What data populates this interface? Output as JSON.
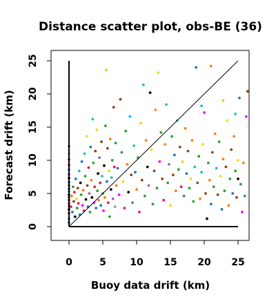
{
  "chart_data": {
    "type": "scatter",
    "title": "Distance scatter plot, obs-BE (36)",
    "xlabel": "Buoy data drift (km)",
    "ylabel": "Forecast drift (km)",
    "xlim": [
      -2.5,
      26.5
    ],
    "ylim": [
      -1.8,
      26
    ],
    "x_ticks": [
      0,
      5,
      10,
      15,
      20,
      25
    ],
    "y_ticks": [
      0,
      5,
      10,
      15,
      20,
      25
    ],
    "grid": false,
    "legend": "none",
    "reference_lines": [
      {
        "kind": "diagonal",
        "x": [
          0,
          25
        ],
        "y": [
          0,
          25
        ]
      },
      {
        "kind": "vertical-axis",
        "x": [
          0,
          0
        ],
        "y": [
          0,
          25
        ]
      },
      {
        "kind": "horizontal-axis",
        "x": [
          0,
          25
        ],
        "y": [
          0,
          0
        ]
      }
    ],
    "palette": [
      "#000000",
      "#e6194b",
      "#2ca02c",
      "#1f77b4",
      "#17becf",
      "#ff00ff",
      "#ffd700",
      "#a0a0a0",
      "#ff7f0e",
      "#8b4513",
      "#7fff00",
      "#9467bd",
      "#00bfff",
      "#ff69b4"
    ],
    "points": [
      [
        0,
        1.2,
        3
      ],
      [
        0,
        2.0,
        1
      ],
      [
        0,
        2.6,
        0
      ],
      [
        0,
        3.1,
        3
      ],
      [
        0,
        3.5,
        5
      ],
      [
        0,
        4.0,
        1
      ],
      [
        0,
        4.4,
        3
      ],
      [
        0,
        4.8,
        0
      ],
      [
        0,
        5.3,
        4
      ],
      [
        0,
        5.7,
        3
      ],
      [
        0,
        6.2,
        1
      ],
      [
        0,
        6.7,
        3
      ],
      [
        0,
        7.3,
        0
      ],
      [
        0,
        7.9,
        5
      ],
      [
        0,
        8.6,
        3
      ],
      [
        0,
        9.3,
        1
      ],
      [
        0,
        10.1,
        9
      ],
      [
        0,
        11.0,
        7
      ],
      [
        0,
        12.1,
        1
      ],
      [
        0,
        0.6,
        3
      ],
      [
        0.3,
        3.0,
        1
      ],
      [
        0.4,
        4.6,
        8
      ],
      [
        0.5,
        2.2,
        3
      ],
      [
        0.6,
        6.0,
        2
      ],
      [
        0.7,
        3.8,
        9
      ],
      [
        0.8,
        5.2,
        1
      ],
      [
        0.9,
        1.5,
        0
      ],
      [
        1.0,
        7.2,
        3
      ],
      [
        1.1,
        4.2,
        6
      ],
      [
        1.2,
        2.8,
        2
      ],
      [
        1.3,
        5.8,
        9
      ],
      [
        1.4,
        3.5,
        1
      ],
      [
        1.5,
        8.4,
        4
      ],
      [
        1.6,
        1.8,
        3
      ],
      [
        1.7,
        6.6,
        0
      ],
      [
        1.8,
        4.8,
        2
      ],
      [
        1.9,
        9.8,
        3
      ],
      [
        2.0,
        3.2,
        5
      ],
      [
        2.1,
        5.5,
        8
      ],
      [
        2.2,
        2.4,
        1
      ],
      [
        2.3,
        11.0,
        4
      ],
      [
        2.4,
        7.6,
        2
      ],
      [
        2.5,
        4.1,
        0
      ],
      [
        2.6,
        13.6,
        6
      ],
      [
        2.7,
        6.2,
        9
      ],
      [
        2.8,
        3.0,
        3
      ],
      [
        2.9,
        8.9,
        1
      ],
      [
        3.0,
        5.0,
        11
      ],
      [
        3.1,
        2.2,
        2
      ],
      [
        3.2,
        12.0,
        3
      ],
      [
        3.3,
        7.0,
        8
      ],
      [
        3.4,
        4.4,
        0
      ],
      [
        3.5,
        16.2,
        4
      ],
      [
        3.6,
        9.6,
        2
      ],
      [
        3.7,
        3.6,
        5
      ],
      [
        3.8,
        6.0,
        1
      ],
      [
        3.9,
        11.4,
        9
      ],
      [
        4.0,
        2.8,
        3
      ],
      [
        4.1,
        14.6,
        6
      ],
      [
        4.2,
        5.4,
        2
      ],
      [
        4.3,
        8.0,
        0
      ],
      [
        4.4,
        4.0,
        8
      ],
      [
        4.5,
        10.4,
        11
      ],
      [
        4.6,
        6.6,
        1
      ],
      [
        4.7,
        3.2,
        3
      ],
      [
        4.8,
        12.8,
        9
      ],
      [
        4.9,
        7.6,
        4
      ],
      [
        5.0,
        5.0,
        2
      ],
      [
        5.1,
        2.4,
        5
      ],
      [
        5.2,
        9.2,
        0
      ],
      [
        5.3,
        4.4,
        8
      ],
      [
        5.4,
        15.2,
        2
      ],
      [
        5.5,
        23.6,
        10
      ],
      [
        5.6,
        6.8,
        3
      ],
      [
        5.7,
        11.8,
        9
      ],
      [
        5.8,
        3.6,
        1
      ],
      [
        5.9,
        8.4,
        6
      ],
      [
        6.0,
        1.5,
        2
      ],
      [
        6.1,
        13.2,
        8
      ],
      [
        6.2,
        5.6,
        0
      ],
      [
        6.3,
        7.4,
        4
      ],
      [
        6.4,
        10.0,
        2
      ],
      [
        6.5,
        4.2,
        11
      ],
      [
        6.6,
        18.0,
        9
      ],
      [
        6.7,
        9.0,
        1
      ],
      [
        6.8,
        3.0,
        7
      ],
      [
        6.9,
        12.6,
        2
      ],
      [
        7.0,
        6.2,
        8
      ],
      [
        7.2,
        8.8,
        3
      ],
      [
        7.4,
        4.8,
        5
      ],
      [
        7.6,
        19.2,
        9
      ],
      [
        7.8,
        11.2,
        2
      ],
      [
        8.0,
        6.8,
        6
      ],
      [
        8.2,
        2.8,
        1
      ],
      [
        8.4,
        14.4,
        2
      ],
      [
        8.6,
        9.4,
        8
      ],
      [
        8.8,
        5.2,
        0
      ],
      [
        9.0,
        16.6,
        12
      ],
      [
        9.2,
        7.8,
        9
      ],
      [
        9.4,
        3.6,
        2
      ],
      [
        9.6,
        12.2,
        4
      ],
      [
        9.8,
        8.2,
        3
      ],
      [
        10.0,
        5.6,
        8
      ],
      [
        10.2,
        10.4,
        2
      ],
      [
        10.4,
        2.2,
        1
      ],
      [
        10.6,
        15.6,
        6
      ],
      [
        10.8,
        7.0,
        9
      ],
      [
        11.0,
        21.4,
        4
      ],
      [
        11.2,
        4.6,
        2
      ],
      [
        11.4,
        13.0,
        8
      ],
      [
        11.6,
        9.0,
        0
      ],
      [
        11.8,
        6.2,
        11
      ],
      [
        12.0,
        20.2,
        0
      ],
      [
        12.2,
        11.6,
        6
      ],
      [
        12.4,
        3.4,
        2
      ],
      [
        12.6,
        8.4,
        9
      ],
      [
        12.8,
        17.6,
        8
      ],
      [
        13.0,
        5.8,
        2
      ],
      [
        13.2,
        23.2,
        6
      ],
      [
        13.4,
        9.8,
        5
      ],
      [
        13.6,
        14.2,
        2
      ],
      [
        13.8,
        7.2,
        9
      ],
      [
        14.0,
        4.0,
        1
      ],
      [
        14.2,
        12.4,
        8
      ],
      [
        14.4,
        18.4,
        4
      ],
      [
        14.6,
        6.6,
        2
      ],
      [
        14.8,
        9.4,
        11
      ],
      [
        15.0,
        3.2,
        6
      ],
      [
        15.2,
        13.6,
        2
      ],
      [
        15.4,
        7.8,
        9
      ],
      [
        15.6,
        10.8,
        3
      ],
      [
        15.8,
        5.4,
        8
      ],
      [
        16.0,
        16.0,
        4
      ],
      [
        16.2,
        8.6,
        2
      ],
      [
        16.4,
        12.0,
        9
      ],
      [
        16.6,
        6.0,
        1
      ],
      [
        16.8,
        9.8,
        6
      ],
      [
        17.0,
        4.6,
        2
      ],
      [
        17.2,
        14.8,
        8
      ],
      [
        17.4,
        8.0,
        3
      ],
      [
        17.6,
        11.4,
        9
      ],
      [
        17.8,
        5.8,
        2
      ],
      [
        18.0,
        7.2,
        6
      ],
      [
        18.2,
        13.0,
        8
      ],
      [
        18.4,
        3.8,
        2
      ],
      [
        18.6,
        9.0,
        4
      ],
      [
        18.8,
        24.0,
        3
      ],
      [
        19.0,
        6.6,
        9
      ],
      [
        19.2,
        10.6,
        2
      ],
      [
        19.4,
        4.2,
        8
      ],
      [
        19.6,
        8.2,
        4
      ],
      [
        19.8,
        12.4,
        6
      ],
      [
        20.0,
        17.2,
        5
      ],
      [
        20.2,
        5.0,
        9
      ],
      [
        20.4,
        1.2,
        0
      ],
      [
        20.6,
        9.6,
        2
      ],
      [
        20.8,
        7.0,
        8
      ],
      [
        21.0,
        3.4,
        3
      ],
      [
        21.2,
        11.2,
        9
      ],
      [
        21.4,
        6.0,
        2
      ],
      [
        21.6,
        14.0,
        8
      ],
      [
        21.8,
        8.8,
        4
      ],
      [
        22.0,
        4.8,
        9
      ],
      [
        22.2,
        12.8,
        2
      ],
      [
        22.4,
        7.6,
        6
      ],
      [
        22.6,
        2.6,
        3
      ],
      [
        22.8,
        10.2,
        8
      ],
      [
        23.0,
        5.4,
        2
      ],
      [
        23.2,
        9.0,
        9
      ],
      [
        23.4,
        16.0,
        6
      ],
      [
        23.6,
        3.2,
        8
      ],
      [
        23.8,
        7.2,
        2
      ],
      [
        24.0,
        11.6,
        9
      ],
      [
        24.2,
        5.0,
        3
      ],
      [
        24.4,
        13.6,
        8
      ],
      [
        24.6,
        8.4,
        2
      ],
      [
        24.8,
        4.4,
        9
      ],
      [
        25.0,
        10.0,
        6
      ],
      [
        25.2,
        19.4,
        3
      ],
      [
        25.4,
        6.4,
        2
      ],
      [
        25.6,
        2.2,
        5
      ],
      [
        25.8,
        9.6,
        8
      ],
      [
        26.0,
        4.6,
        2
      ],
      [
        26.2,
        16.6,
        5
      ],
      [
        26.4,
        20.4,
        9
      ],
      [
        25.0,
        7.2,
        0
      ],
      [
        24.6,
        17.0,
        4
      ],
      [
        22.8,
        19.0,
        10
      ],
      [
        21.0,
        24.2,
        8
      ],
      [
        19.6,
        18.2,
        12
      ]
    ]
  }
}
